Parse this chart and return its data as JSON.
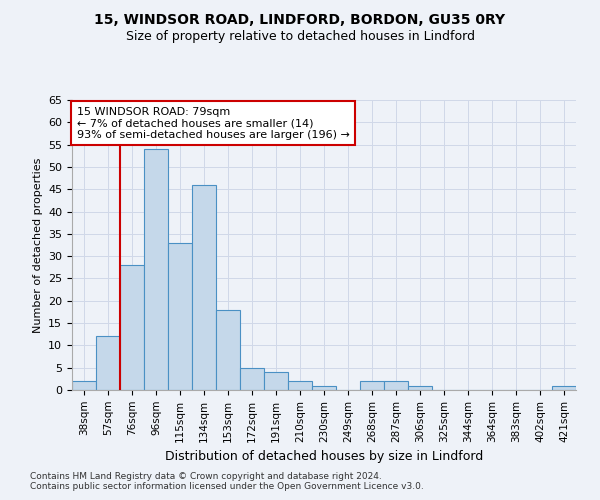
{
  "title1": "15, WINDSOR ROAD, LINDFORD, BORDON, GU35 0RY",
  "title2": "Size of property relative to detached houses in Lindford",
  "xlabel": "Distribution of detached houses by size in Lindford",
  "ylabel": "Number of detached properties",
  "categories": [
    "38sqm",
    "57sqm",
    "76sqm",
    "96sqm",
    "115sqm",
    "134sqm",
    "153sqm",
    "172sqm",
    "191sqm",
    "210sqm",
    "230sqm",
    "249sqm",
    "268sqm",
    "287sqm",
    "306sqm",
    "325sqm",
    "344sqm",
    "364sqm",
    "383sqm",
    "402sqm",
    "421sqm"
  ],
  "values": [
    2,
    12,
    28,
    54,
    33,
    46,
    18,
    5,
    4,
    2,
    1,
    0,
    2,
    2,
    1,
    0,
    0,
    0,
    0,
    0,
    1
  ],
  "bar_color": "#c5d8ea",
  "bar_edge_color": "#4a90c4",
  "vline_x_index": 2,
  "vline_color": "#cc0000",
  "annotation_text": "15 WINDSOR ROAD: 79sqm\n← 7% of detached houses are smaller (14)\n93% of semi-detached houses are larger (196) →",
  "annotation_box_color": "#ffffff",
  "annotation_box_edge": "#cc0000",
  "ylim": [
    0,
    65
  ],
  "yticks": [
    0,
    5,
    10,
    15,
    20,
    25,
    30,
    35,
    40,
    45,
    50,
    55,
    60,
    65
  ],
  "grid_color": "#d0d8e8",
  "footer1": "Contains HM Land Registry data © Crown copyright and database right 2024.",
  "footer2": "Contains public sector information licensed under the Open Government Licence v3.0.",
  "bg_color": "#eef2f8"
}
